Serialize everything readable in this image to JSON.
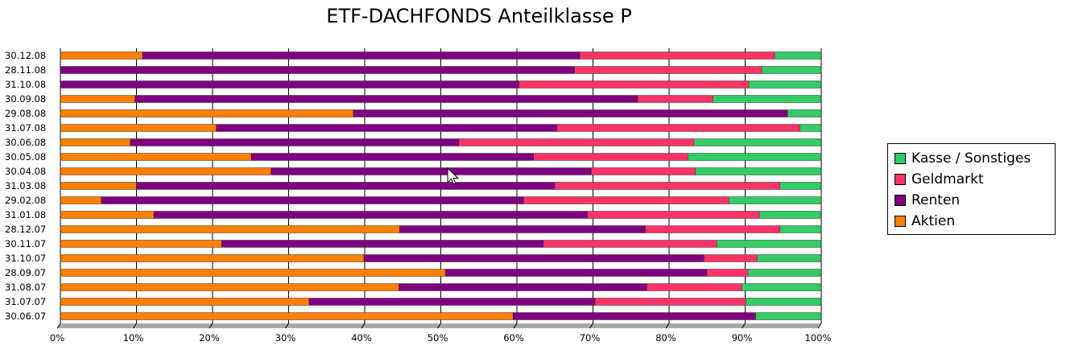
{
  "chart_data": {
    "type": "bar",
    "orientation": "horizontal",
    "stacked": true,
    "normalized": true,
    "title": "ETF-DACHFONDS Anteilklasse P",
    "xlim": [
      0,
      100
    ],
    "x_ticks": [
      "0%",
      "10%",
      "20%",
      "30%",
      "40%",
      "50%",
      "60%",
      "70%",
      "80%",
      "90%",
      "100%"
    ],
    "grid": true,
    "legend_position": "right",
    "categories": [
      "30.12.08",
      "28.11.08",
      "31.10.08",
      "30.09.08",
      "29.08.08",
      "31.07.08",
      "30.06.08",
      "30.05.08",
      "30.04.08",
      "31.03.08",
      "29.02.08",
      "31.01.08",
      "28.12.07",
      "30.11.07",
      "31.10.07",
      "28.09.07",
      "31.08.07",
      "31.07.07",
      "30.06.07"
    ],
    "series": [
      {
        "name": "Aktien",
        "color": "#ff7f00",
        "values": [
          10.8,
          0,
          0,
          9.8,
          38.5,
          20.5,
          9.2,
          25.1,
          27.7,
          10.0,
          5.4,
          12.3,
          44.6,
          21.2,
          39.9,
          50.6,
          44.5,
          32.7,
          59.5
        ]
      },
      {
        "name": "Renten",
        "color": "#7f007f",
        "values": [
          57.5,
          67.6,
          60.3,
          66.1,
          57.1,
          44.8,
          43.2,
          37.1,
          42.1,
          55.0,
          55.5,
          57.0,
          32.3,
          42.3,
          44.7,
          34.4,
          32.6,
          37.6,
          31.9
        ]
      },
      {
        "name": "Geldmarkt",
        "color": "#ff3366",
        "values": [
          25.6,
          24.6,
          30.2,
          9.9,
          0,
          31.9,
          30.9,
          20.3,
          13.7,
          29.6,
          27.0,
          22.6,
          17.7,
          22.8,
          7.0,
          5.4,
          12.5,
          19.8,
          0
        ]
      },
      {
        "name": "Kasse / Sonstiges",
        "color": "#33cc66",
        "values": [
          6.1,
          7.8,
          9.5,
          14.2,
          4.4,
          2.8,
          16.7,
          17.5,
          16.5,
          5.4,
          12.1,
          8.1,
          5.4,
          13.7,
          8.4,
          9.6,
          10.4,
          9.9,
          8.6
        ]
      }
    ]
  },
  "legend_order": [
    "Kasse / Sonstiges",
    "Geldmarkt",
    "Renten",
    "Aktien"
  ]
}
